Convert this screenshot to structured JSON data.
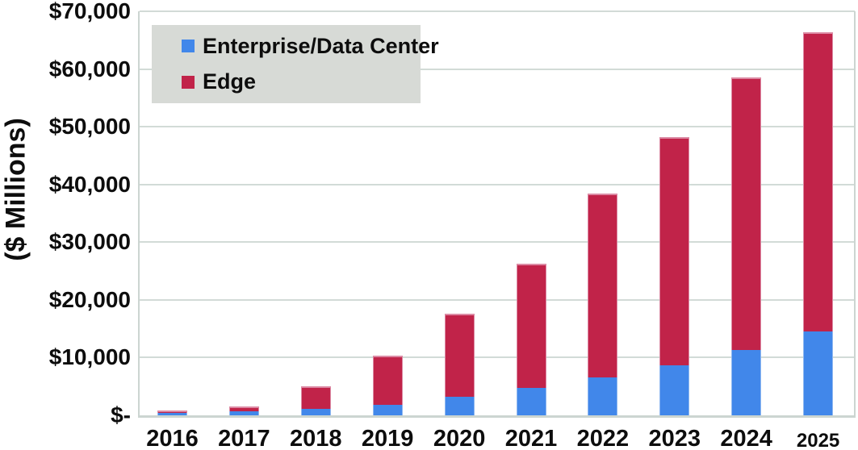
{
  "figure": {
    "y_axis_title": "($ Millions)",
    "y_ticks": [
      {
        "label": "$70,000",
        "value": 70000
      },
      {
        "label": "$60,000",
        "value": 60000
      },
      {
        "label": "$50,000",
        "value": 50000
      },
      {
        "label": "$40,000",
        "value": 40000
      },
      {
        "label": "$30,000",
        "value": 30000
      },
      {
        "label": "$20,000",
        "value": 20000
      },
      {
        "label": "$10,000",
        "value": 10000
      },
      {
        "label": "$-",
        "value": 0
      }
    ],
    "legend": [
      {
        "label": "Enterprise/Data Center",
        "color": "#4187ea"
      },
      {
        "label": "Edge",
        "color": "#c12349"
      }
    ],
    "colors": {
      "grid": "#d2dbd7",
      "axis": "#ccd5d1",
      "legend_bg": "#d7dad6",
      "text": "#0d0d0d"
    }
  },
  "chart_data": {
    "type": "bar",
    "stacked": true,
    "title": "",
    "xlabel": "",
    "ylabel": "($ Millions)",
    "ylim": [
      0,
      70000
    ],
    "y_tick_interval": 10000,
    "grid": true,
    "legend_position": "upper-left-inside",
    "categories": [
      "2016",
      "2017",
      "2018",
      "2019",
      "2020",
      "2021",
      "2022",
      "2023",
      "2024",
      "2025"
    ],
    "series": [
      {
        "name": "Enterprise/Data Center",
        "color": "#4187ea",
        "edge_color": "#8fb8f0",
        "values": [
          350,
          700,
          1100,
          1800,
          3200,
          4800,
          6500,
          8600,
          11300,
          14500
        ]
      },
      {
        "name": "Edge",
        "color": "#c12349",
        "edge_color": "#dc8aa4",
        "values": [
          450,
          900,
          3900,
          8600,
          14400,
          21500,
          31900,
          39600,
          47200,
          51800
        ]
      }
    ],
    "totals": [
      800,
      1600,
      5000,
      10400,
      17600,
      26300,
      38400,
      48200,
      58500,
      66300
    ]
  }
}
